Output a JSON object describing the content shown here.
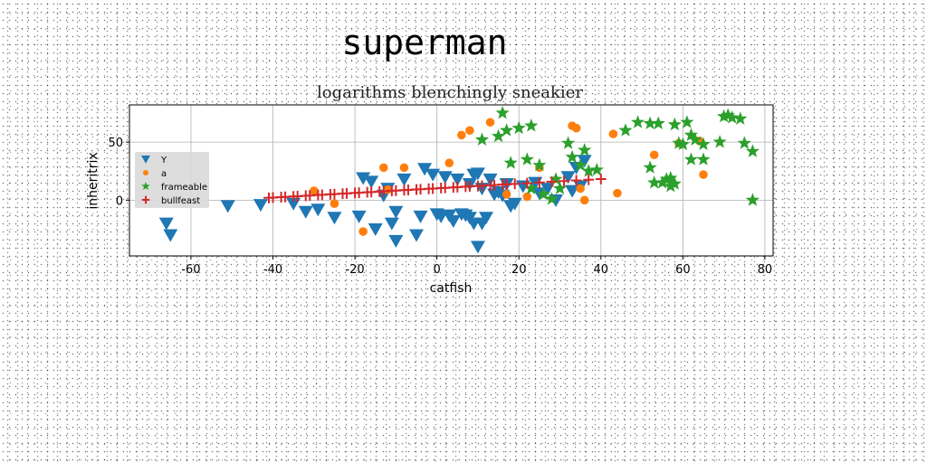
{
  "chart_data": {
    "type": "scatter",
    "title": "superman",
    "subtitle": "logarithms blenchingly sneakier",
    "xlabel": "catfish",
    "ylabel": "inheritrix",
    "xlim": [
      -75,
      82
    ],
    "ylim": [
      -48,
      82
    ],
    "xticks": [
      -60,
      -40,
      -20,
      0,
      20,
      40,
      60,
      80
    ],
    "yticks": [
      0,
      50
    ],
    "grid": true,
    "legend": "upper-left",
    "series": [
      {
        "name": "Y",
        "marker": "triangle-down",
        "color": "#1f77b4",
        "points": [
          [
            -66,
            -20
          ],
          [
            -65,
            -30
          ],
          [
            -51,
            -5
          ],
          [
            -43,
            -4
          ],
          [
            -35,
            -3
          ],
          [
            -32,
            -10
          ],
          [
            -29,
            -8
          ],
          [
            -25,
            -15
          ],
          [
            -19,
            -14
          ],
          [
            -18,
            19
          ],
          [
            -16,
            16
          ],
          [
            -15,
            -25
          ],
          [
            -13,
            4
          ],
          [
            -12,
            10
          ],
          [
            -11,
            -20
          ],
          [
            -10,
            -10
          ],
          [
            -10,
            -35
          ],
          [
            -8,
            18
          ],
          [
            -5,
            -30
          ],
          [
            -4,
            -14
          ],
          [
            -3,
            27
          ],
          [
            -1,
            22
          ],
          [
            0,
            -12
          ],
          [
            1,
            -14
          ],
          [
            2,
            20
          ],
          [
            3,
            -13
          ],
          [
            4,
            -18
          ],
          [
            5,
            18
          ],
          [
            6,
            -12
          ],
          [
            7,
            -13
          ],
          [
            8,
            14
          ],
          [
            8,
            -15
          ],
          [
            9,
            22
          ],
          [
            9,
            -20
          ],
          [
            10,
            23
          ],
          [
            10,
            -40
          ],
          [
            11,
            10
          ],
          [
            11,
            -20
          ],
          [
            12,
            -15
          ],
          [
            13,
            18
          ],
          [
            14,
            5
          ],
          [
            15,
            7
          ],
          [
            16,
            4
          ],
          [
            17,
            14
          ],
          [
            18,
            -5
          ],
          [
            19,
            -3
          ],
          [
            21,
            12
          ],
          [
            24,
            15
          ],
          [
            25,
            6
          ],
          [
            27,
            10
          ],
          [
            29,
            0
          ],
          [
            32,
            20
          ],
          [
            33,
            8
          ],
          [
            34,
            28
          ],
          [
            35,
            12
          ],
          [
            36,
            34
          ]
        ]
      },
      {
        "name": "a",
        "marker": "circle",
        "color": "#ff7f0e",
        "points": [
          [
            -30,
            8
          ],
          [
            -25,
            -3
          ],
          [
            -18,
            -27
          ],
          [
            -13,
            28
          ],
          [
            -12,
            9
          ],
          [
            -8,
            28
          ],
          [
            3,
            32
          ],
          [
            6,
            56
          ],
          [
            8,
            60
          ],
          [
            13,
            67
          ],
          [
            17,
            5
          ],
          [
            22,
            3
          ],
          [
            25,
            28
          ],
          [
            33,
            64
          ],
          [
            34,
            62
          ],
          [
            35,
            10
          ],
          [
            36,
            0
          ],
          [
            43,
            57
          ],
          [
            44,
            6
          ],
          [
            53,
            39
          ],
          [
            59,
            49
          ],
          [
            64,
            51
          ],
          [
            65,
            22
          ]
        ]
      },
      {
        "name": "frameable",
        "marker": "star",
        "color": "#2ca02c",
        "points": [
          [
            11,
            52
          ],
          [
            15,
            55
          ],
          [
            16,
            75
          ],
          [
            17,
            60
          ],
          [
            18,
            32
          ],
          [
            20,
            62
          ],
          [
            22,
            35
          ],
          [
            23,
            10
          ],
          [
            23,
            64
          ],
          [
            25,
            30
          ],
          [
            26,
            5
          ],
          [
            28,
            1
          ],
          [
            29,
            18
          ],
          [
            30,
            10
          ],
          [
            32,
            49
          ],
          [
            33,
            37
          ],
          [
            35,
            30
          ],
          [
            36,
            43
          ],
          [
            37,
            25
          ],
          [
            39,
            26
          ],
          [
            46,
            60
          ],
          [
            49,
            67
          ],
          [
            52,
            66
          ],
          [
            52,
            28
          ],
          [
            53,
            15
          ],
          [
            54,
            66
          ],
          [
            55,
            15
          ],
          [
            56,
            18
          ],
          [
            57,
            19
          ],
          [
            57,
            12
          ],
          [
            58,
            14
          ],
          [
            58,
            65
          ],
          [
            59,
            49
          ],
          [
            60,
            48
          ],
          [
            61,
            67
          ],
          [
            62,
            56
          ],
          [
            62,
            35
          ],
          [
            63,
            52
          ],
          [
            65,
            48
          ],
          [
            65,
            35
          ],
          [
            69,
            50
          ],
          [
            70,
            72
          ],
          [
            71,
            73
          ],
          [
            72,
            71
          ],
          [
            74,
            70
          ],
          [
            75,
            49
          ],
          [
            77,
            42
          ],
          [
            77,
            0
          ]
        ]
      },
      {
        "name": "bullfeast",
        "marker": "plus",
        "color": "#d62728",
        "points": [
          [
            -41,
            2
          ],
          [
            -38,
            2.6
          ],
          [
            -35,
            3.2
          ],
          [
            -32,
            3.8
          ],
          [
            -29,
            4.4
          ],
          [
            -26,
            5
          ],
          [
            -23,
            5.6
          ],
          [
            -20,
            6.2
          ],
          [
            -17,
            6.8
          ],
          [
            -14,
            7.4
          ],
          [
            -11,
            8
          ],
          [
            -8,
            8.6
          ],
          [
            -5,
            9.2
          ],
          [
            -2,
            9.8
          ],
          [
            1,
            10.4
          ],
          [
            4,
            11
          ],
          [
            7,
            11.6
          ],
          [
            10,
            12.2
          ],
          [
            13,
            12.8
          ],
          [
            16,
            13.4
          ],
          [
            19,
            14
          ],
          [
            22,
            14.6
          ],
          [
            25,
            15.2
          ],
          [
            28,
            15.8
          ],
          [
            31,
            16.4
          ],
          [
            34,
            17
          ],
          [
            37,
            17.6
          ],
          [
            40,
            18.2
          ],
          [
            -40,
            2.2
          ],
          [
            -37,
            2.8
          ],
          [
            -34,
            3.4
          ],
          [
            -31,
            4
          ],
          [
            -28,
            4.6
          ],
          [
            -25,
            5.2
          ],
          [
            -22,
            5.8
          ],
          [
            -19,
            6.4
          ],
          [
            -16,
            7
          ],
          [
            -13,
            7.6
          ],
          [
            -10,
            8.2
          ],
          [
            -7,
            8.8
          ],
          [
            -4,
            9.4
          ],
          [
            -1,
            10
          ],
          [
            2,
            10.6
          ],
          [
            5,
            11.2
          ],
          [
            8,
            11.8
          ],
          [
            11,
            12.4
          ],
          [
            14,
            13
          ],
          [
            17,
            13.6
          ]
        ]
      }
    ]
  }
}
